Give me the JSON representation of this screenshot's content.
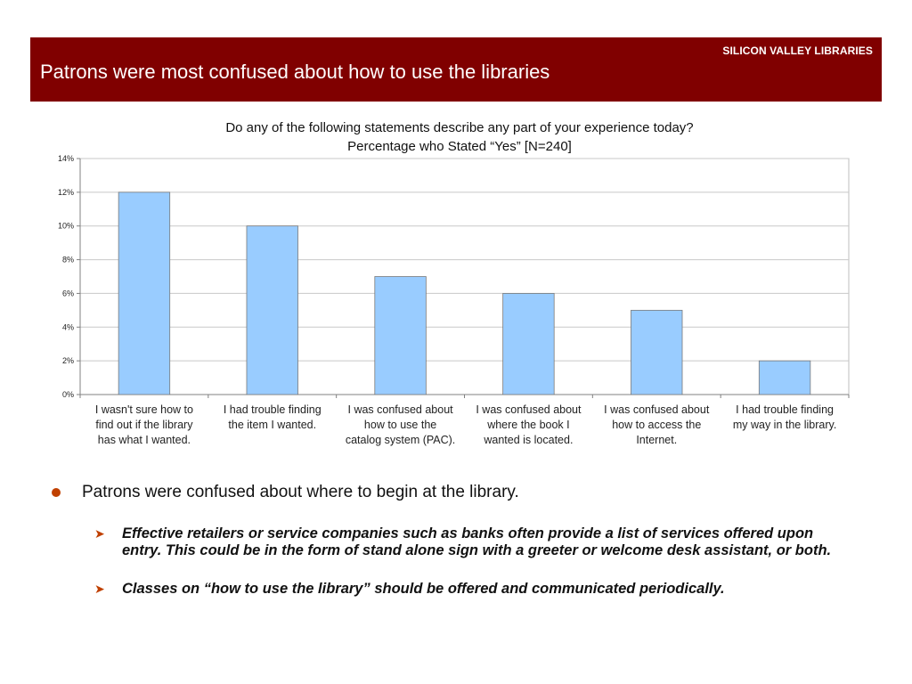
{
  "header": {
    "brand": "SILICON VALLEY LIBRARIES",
    "title": "Patrons were most confused about how to use the libraries",
    "background": "#800000"
  },
  "chart_data": {
    "type": "bar",
    "title": "Do any of the following statements describe any part of your experience today?",
    "subtitle": "Percentage who Stated “Yes” [N=240]",
    "categories": [
      [
        "I wasn't sure how to",
        "find out if the library",
        "has what I wanted."
      ],
      [
        "I had trouble finding",
        "the item I wanted."
      ],
      [
        "I was confused about",
        "how to use the",
        "catalog system (PAC)."
      ],
      [
        "I was confused about",
        "where the book I",
        "wanted is located."
      ],
      [
        "I was confused about",
        "how to access the",
        "Internet."
      ],
      [
        "I had trouble finding",
        "my way in the library."
      ]
    ],
    "values": [
      12,
      10,
      7,
      6,
      5,
      2
    ],
    "ylim": [
      0,
      14
    ],
    "yticks": [
      0,
      2,
      4,
      6,
      8,
      10,
      12,
      14
    ],
    "ytick_labels": [
      "0%",
      "2%",
      "4%",
      "6%",
      "8%",
      "10%",
      "12%",
      "14%"
    ],
    "grid": true,
    "bar_color": "#99ccff",
    "xlabel": "",
    "ylabel": ""
  },
  "bullets": {
    "main": "Patrons were confused about where to begin at the library.",
    "subs": [
      "Effective retailers or service companies such as banks often provide a list of services offered upon entry. This could be in the form of stand alone sign with a greeter or welcome desk assistant, or both.",
      "Classes on “how to use the library” should be offered and communicated periodically."
    ],
    "bullet_color": "#c04000"
  }
}
